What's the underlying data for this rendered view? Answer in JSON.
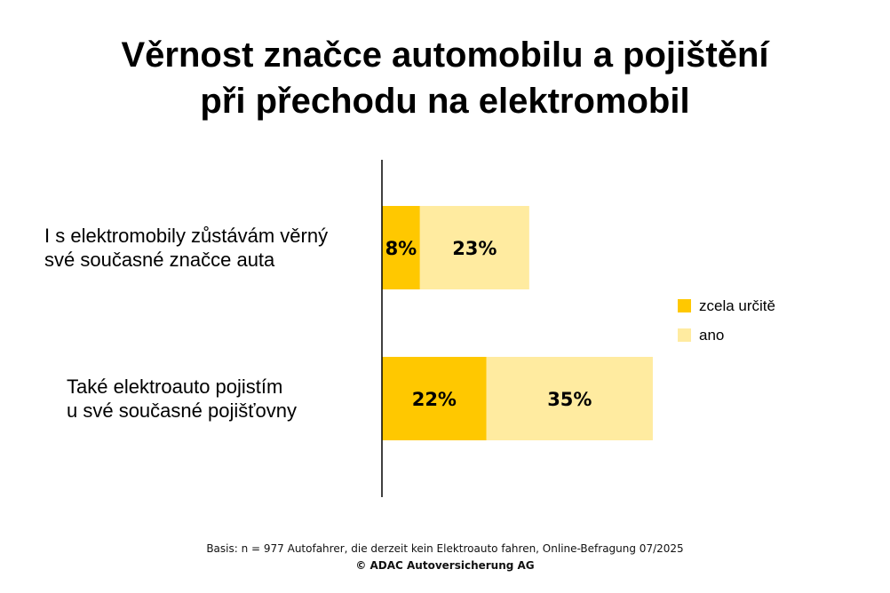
{
  "chart_data": {
    "type": "bar",
    "orientation": "horizontal",
    "stacked": true,
    "title": [
      "Věrnost značce automobilu a pojištění",
      "při přechodu na elektromobil"
    ],
    "categories": [
      [
        "I s elektromobily zůstávám věrný",
        "své současné značce auta"
      ],
      [
        "Také elektroauto pojistím",
        "u své současné pojišťovny"
      ]
    ],
    "series": [
      {
        "name": "zcela určitě",
        "color": "#FFC800",
        "values": [
          8,
          22
        ],
        "labels": [
          "8%",
          "22%"
        ]
      },
      {
        "name": "ano",
        "color": "#FFEBA0",
        "values": [
          23,
          35
        ],
        "labels": [
          "23%",
          "35%"
        ]
      }
    ],
    "xlim": [
      0,
      60
    ],
    "grid": false,
    "legend": "right"
  },
  "footer": {
    "basis": "Basis: n = 977  Autofahrer, die derzeit kein Elektroauto fahren, Online-Befragung 07/2025",
    "copyright": "© ADAC Autoversicherung AG"
  }
}
